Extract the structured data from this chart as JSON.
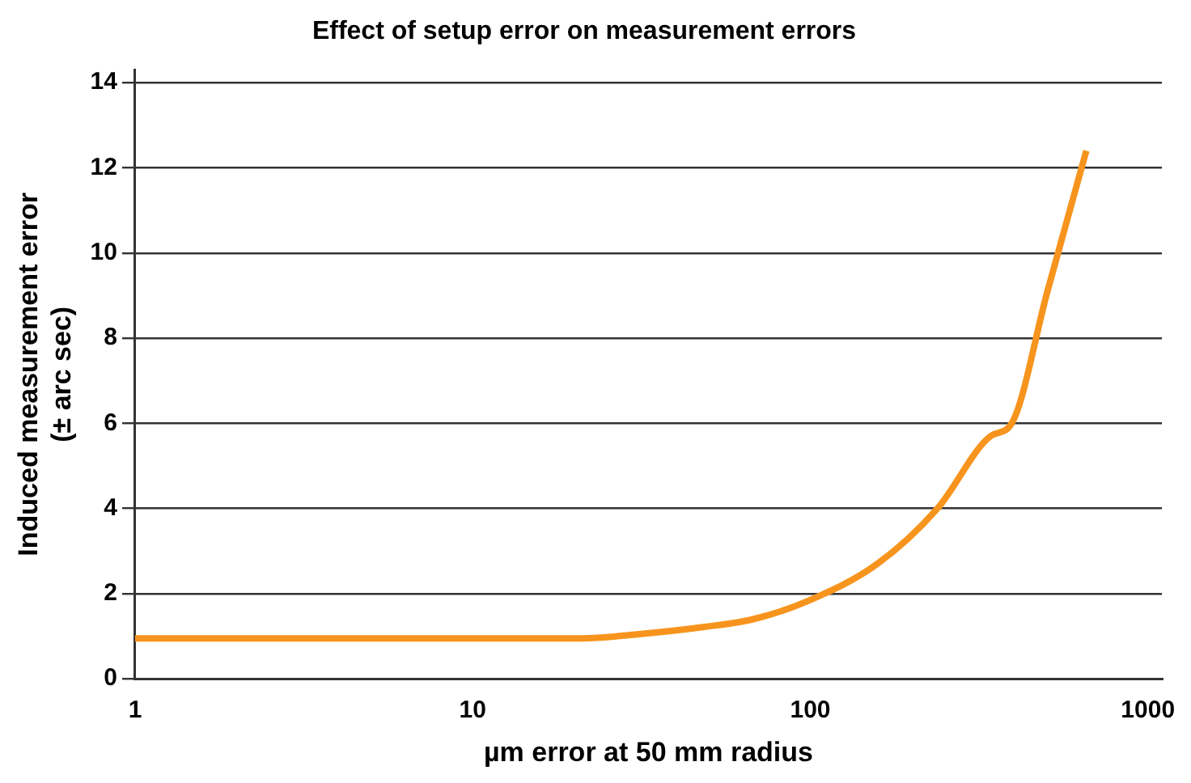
{
  "chart_data": {
    "type": "line",
    "title": "Effect of setup error on measurement errors",
    "xlabel": "µm error at 50 mm radius",
    "ylabel": "Induced measurement error\n(± arc sec)",
    "log": "x",
    "grid": "y",
    "marker": "none",
    "line_style": "solid",
    "x": [
      1,
      21,
      30.2,
      48.6,
      67.7,
      98.5,
      158,
      238,
      342,
      395,
      504,
      657
    ],
    "series": [
      {
        "color": "#f7941d",
        "values": [
          0.95,
          0.95,
          1.04,
          1.22,
          1.4,
          1.83,
          2.7,
          4.0,
          5.7,
          6.0,
          9.1,
          12.4
        ]
      }
    ],
    "xlim": [
      1,
      1100
    ],
    "xticks": [
      1,
      10,
      100,
      1000
    ],
    "ylim": [
      0,
      14.3
    ],
    "yticks": [
      0,
      2,
      4,
      6,
      8,
      10,
      12,
      14
    ]
  }
}
